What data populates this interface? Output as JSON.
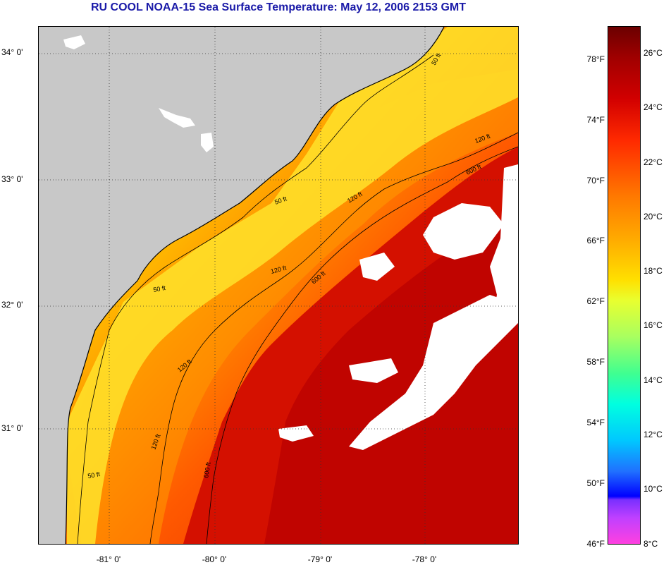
{
  "title": "RU COOL  NOAA-15  Sea Surface Temperature:  May 12, 2006 2153 GMT",
  "map": {
    "lat_ticks": [
      "34° 0'",
      "33° 0'",
      "32° 0'",
      "31° 0'"
    ],
    "lon_ticks": [
      "-81° 0'",
      "-80° 0'",
      "-79° 0'",
      "-78° 0'"
    ],
    "contour_labels": [
      "50 ft",
      "50 ft",
      "50 ft",
      "50 ft",
      "120 ft",
      "120 ft",
      "120 ft",
      "120 ft",
      "120 ft",
      "600 ft",
      "600 ft",
      "600 ft"
    ],
    "colors": {
      "land": "#c8c8c8",
      "cloud": "#ffffff",
      "warm": "#c80000",
      "shelf": "#ffd21e"
    }
  },
  "colorbar": {
    "fahrenheit": [
      "78°F",
      "74°F",
      "70°F",
      "66°F",
      "62°F",
      "58°F",
      "54°F",
      "50°F",
      "46°F"
    ],
    "celsius": [
      "26°C",
      "24°C",
      "22°C",
      "20°C",
      "18°C",
      "16°C",
      "14°C",
      "12°C",
      "10°C",
      "8°C"
    ]
  }
}
